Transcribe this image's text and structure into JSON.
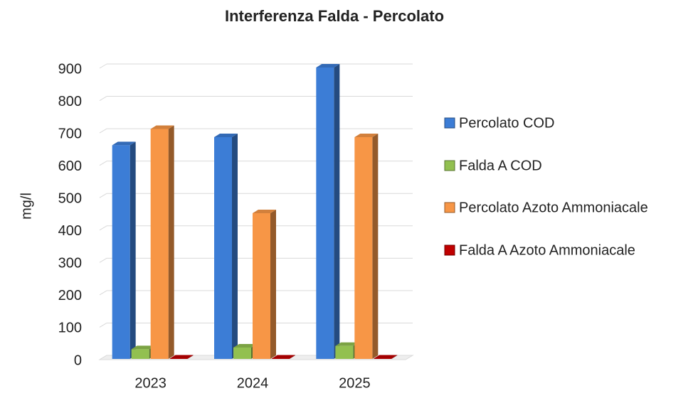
{
  "chart_data": {
    "type": "bar3d",
    "title": "Interferenza Falda - Percolato",
    "y_label": "mg/l",
    "categories": [
      "2023",
      "2024",
      "2025"
    ],
    "series": [
      {
        "name": "Percolato COD",
        "color": "#3c7dd6",
        "values": [
          660,
          685,
          900
        ]
      },
      {
        "name": "Falda A COD",
        "color": "#92c050",
        "values": [
          30,
          35,
          40
        ]
      },
      {
        "name": "Percolato Azoto Ammoniacale",
        "color": "#f79646",
        "values": [
          710,
          450,
          685
        ]
      },
      {
        "name": "Falda A Azoto Ammoniacale",
        "color": "#c00000",
        "values": [
          1,
          1,
          1
        ]
      }
    ],
    "ylim": [
      0,
      900
    ],
    "yticks": [
      0,
      100,
      200,
      300,
      400,
      500,
      600,
      700,
      800,
      900
    ],
    "grid": true,
    "legend": "right"
  }
}
